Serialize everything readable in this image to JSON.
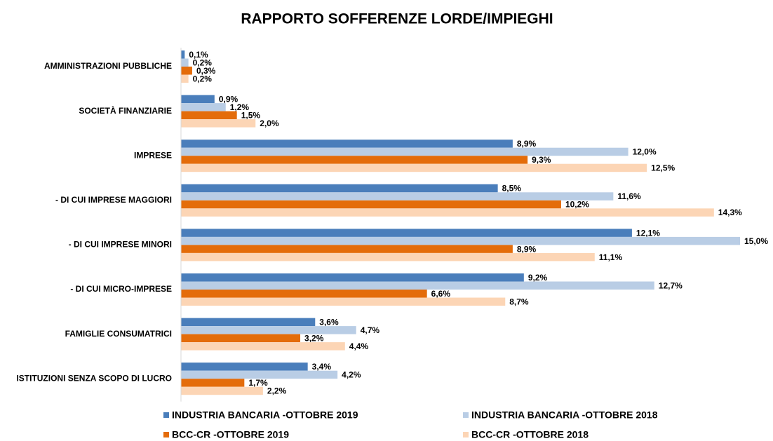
{
  "chart_data": {
    "type": "hbar",
    "title": "RAPPORTO SOFFERENZE LORDE/IMPIEGHI",
    "categories": [
      "AMMINISTRAZIONI PUBBLICHE",
      "SOCIETÀ FINANZIARIE",
      "IMPRESE",
      "- DI CUI IMPRESE MAGGIORI",
      "- DI CUI IMPRESE MINORI",
      "- DI CUI MICRO-IMPRESE",
      "FAMIGLIE CONSUMATRICI",
      "ISTITUZIONI SENZA SCOPO DI LUCRO"
    ],
    "series": [
      {
        "name": "INDUSTRIA BANCARIA -OTTOBRE 2019",
        "color": "#4a7ebb",
        "values": [
          0.1,
          0.9,
          8.9,
          8.5,
          12.1,
          9.2,
          3.6,
          3.4
        ],
        "value_labels": [
          "0,1%",
          "0,9%",
          "8,9%",
          "8,5%",
          "12,1%",
          "9,2%",
          "3,6%",
          "3,4%"
        ]
      },
      {
        "name": "INDUSTRIA BANCARIA -OTTOBRE 2018",
        "color": "#b9cde5",
        "values": [
          0.2,
          1.2,
          12.0,
          11.6,
          15.0,
          12.7,
          4.7,
          4.2
        ],
        "value_labels": [
          "0,2%",
          "1,2%",
          "12,0%",
          "11,6%",
          "15,0%",
          "12,7%",
          "4,7%",
          "4,2%"
        ]
      },
      {
        "name": "BCC-CR -OTTOBRE 2019",
        "color": "#e46c0a",
        "values": [
          0.3,
          1.5,
          9.3,
          10.2,
          8.9,
          6.6,
          3.2,
          1.7
        ],
        "value_labels": [
          "0,3%",
          "1,5%",
          "9,3%",
          "10,2%",
          "8,9%",
          "6,6%",
          "3,2%",
          "1,7%"
        ]
      },
      {
        "name": "BCC-CR -OTTOBRE 2018",
        "color": "#fcd5b5",
        "values": [
          0.2,
          2.0,
          12.5,
          14.3,
          11.1,
          8.7,
          4.4,
          2.2
        ],
        "value_labels": [
          "0,2%",
          "2,0%",
          "12,5%",
          "14,3%",
          "11,1%",
          "8,7%",
          "4,4%",
          "2,2%"
        ]
      }
    ]
  }
}
